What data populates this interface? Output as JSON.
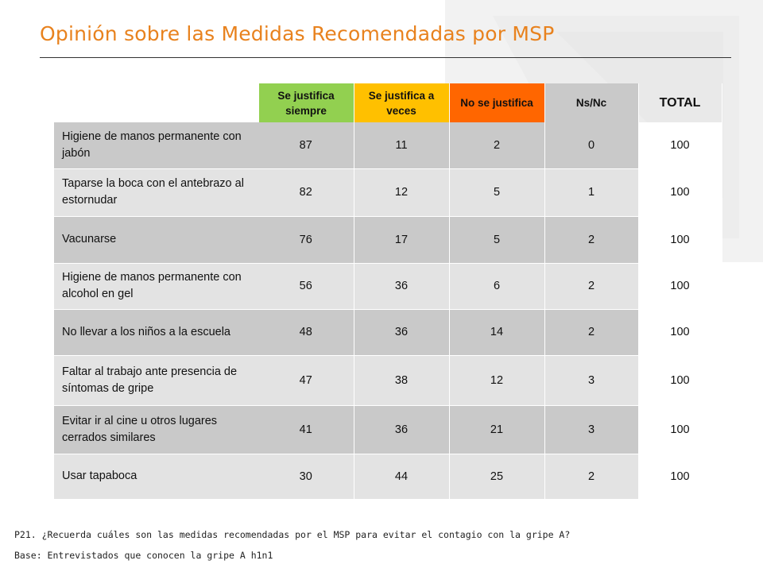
{
  "title": "Opinión sobre las Medidas Recomendadas por MSP",
  "colors": {
    "title": "#e8821e",
    "siempre": "#92d050",
    "a_veces": "#ffc000",
    "no_justifica": "#ff6600",
    "nsnc": "#c9c9c9",
    "row_dark": "#c9c9c9",
    "row_light": "#e3e3e3"
  },
  "table": {
    "headers": [
      "Se justifica siempre",
      "Se justifica a veces",
      "No se justifica",
      "Ns/Nc",
      "TOTAL"
    ],
    "rows": [
      {
        "label": "Higiene de manos permanente con jabón",
        "values": [
          "87",
          "11",
          "2",
          "0",
          "100"
        ]
      },
      {
        "label": "Taparse la boca con el antebrazo al estornudar",
        "values": [
          "82",
          "12",
          "5",
          "1",
          "100"
        ]
      },
      {
        "label": "Vacunarse",
        "values": [
          "76",
          "17",
          "5",
          "2",
          "100"
        ]
      },
      {
        "label": "Higiene de manos permanente con alcohol en gel",
        "values": [
          "56",
          "36",
          "6",
          "2",
          "100"
        ]
      },
      {
        "label": "No llevar a los niños a la escuela",
        "values": [
          "48",
          "36",
          "14",
          "2",
          "100"
        ]
      },
      {
        "label": "Faltar al trabajo ante presencia de síntomas de gripe",
        "values": [
          "47",
          "38",
          "12",
          "3",
          "100"
        ]
      },
      {
        "label": "Evitar ir al cine u otros lugares cerrados similares",
        "values": [
          "41",
          "36",
          "21",
          "3",
          "100"
        ]
      },
      {
        "label": "Usar tapaboca",
        "values": [
          "30",
          "44",
          "25",
          "2",
          "100"
        ]
      }
    ]
  },
  "footer": {
    "question": "P21. ¿Recuerda cuáles son las medidas recomendadas por el MSP para evitar el contagio con la gripe A?",
    "base": "Base: Entrevistados que conocen la gripe A h1n1"
  }
}
